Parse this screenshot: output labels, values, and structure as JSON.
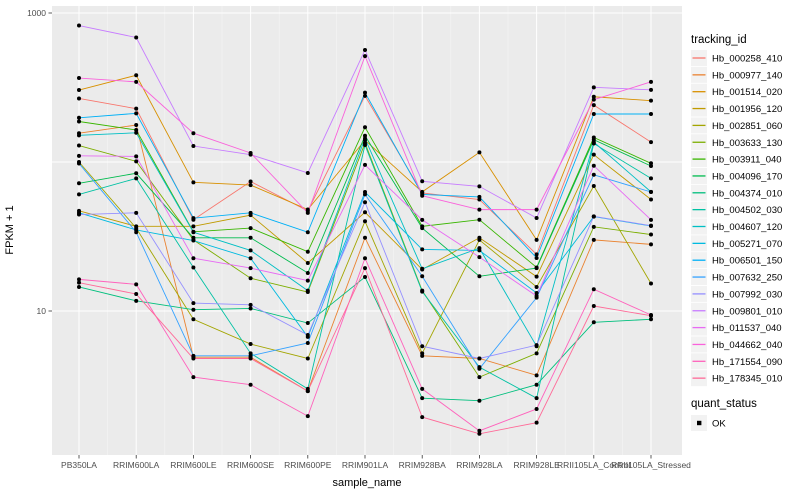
{
  "chart_data": {
    "type": "line",
    "title": "",
    "xlabel": "sample_name",
    "ylabel": "FPKM + 1",
    "y_scale": "log10",
    "ylim": [
      1,
      1100
    ],
    "y_ticks": [
      {
        "value": 1000,
        "label": "1000"
      },
      {
        "value": 10,
        "label": "10"
      }
    ],
    "y_gridlines": [
      10,
      100,
      1000
    ],
    "grid": "on",
    "legend_position": "right",
    "categories": [
      "PB350LA",
      "RRIM600LA",
      "RRIM600LE",
      "RRIM600SE",
      "RRIM600PE",
      "RRIM901LA",
      "RRIM928BA",
      "RRIM928LA",
      "RRIM928LE",
      "RRII105LA_Control",
      "RRII105LA_Stressed"
    ],
    "legend_title": "tracking_id",
    "series": [
      {
        "name": "Hb_000258_410",
        "color": "#F8766D",
        "values": [
          267,
          228,
          41,
          74,
          47,
          278,
          62,
          56,
          24,
          241,
          136
        ]
      },
      {
        "name": "Hb_000977_140",
        "color": "#EA8331",
        "values": [
          156,
          177,
          4.9,
          4.9,
          2.9,
          31,
          5.0,
          4.8,
          3.7,
          30,
          28
        ]
      },
      {
        "name": "Hb_001514_020",
        "color": "#D89000",
        "values": [
          304,
          382,
          73,
          70,
          48,
          140,
          63,
          116,
          30,
          274,
          258
        ]
      },
      {
        "name": "Hb_001956_120",
        "color": "#C09B00",
        "values": [
          47,
          37,
          37,
          44,
          21,
          46,
          19,
          31,
          17,
          112,
          56
        ]
      },
      {
        "name": "Hb_002851_060",
        "color": "#A3A500",
        "values": [
          100,
          36,
          8.8,
          6.0,
          4.8,
          40,
          5.2,
          30,
          14.5,
          69,
          15.3
        ]
      },
      {
        "name": "Hb_003633_130",
        "color": "#7CAE00",
        "values": [
          129,
          101,
          30,
          16.6,
          13.4,
          134,
          13.7,
          3.6,
          5.2,
          36.7,
          32.6
        ]
      },
      {
        "name": "Hb_003911_040",
        "color": "#39B600",
        "values": [
          187,
          164,
          34,
          36,
          25,
          171,
          37,
          41,
          19.6,
          146,
          98
        ]
      },
      {
        "name": "Hb_004096_170",
        "color": "#00BB4E",
        "values": [
          72,
          84,
          31,
          31,
          18,
          150,
          36,
          17.1,
          19.4,
          141,
          94
        ]
      },
      {
        "name": "Hb_004374_010",
        "color": "#00BF7D",
        "values": [
          14.5,
          11.7,
          10.2,
          10.4,
          8.3,
          16.9,
          2.6,
          2.5,
          3.2,
          8.4,
          8.8
        ]
      },
      {
        "name": "Hb_004502_030",
        "color": "#00C1A3",
        "values": [
          60.6,
          77.6,
          19.6,
          5.2,
          3.0,
          130,
          13.5,
          4.2,
          2.6,
          133,
          77.6
        ]
      },
      {
        "name": "Hb_004607_120",
        "color": "#00BFC4",
        "values": [
          151,
          157,
          33.8,
          25.5,
          13.7,
          144,
          19.2,
          26.4,
          5.8,
          136,
          63
        ]
      },
      {
        "name": "Hb_005271_070",
        "color": "#00BAE0",
        "values": [
          45.6,
          35,
          29.7,
          22.6,
          6.7,
          62.9,
          25.9,
          25.5,
          13.2,
          43,
          37.2
        ]
      },
      {
        "name": "Hb_006501_150",
        "color": "#00B0F6",
        "values": [
          198,
          212,
          42,
          45.6,
          33.8,
          292,
          60.6,
          58.3,
          22.7,
          210,
          210
        ]
      },
      {
        "name": "Hb_007632_250",
        "color": "#35A2FF",
        "values": [
          97.8,
          33.8,
          5.0,
          5.0,
          6.1,
          60.6,
          17.1,
          4.1,
          12.3,
          82.1,
          62.9
        ]
      },
      {
        "name": "Hb_007992_030",
        "color": "#9590FF",
        "values": [
          44.4,
          45.6,
          11.3,
          11.0,
          6.9,
          53.7,
          5.8,
          4.8,
          5.9,
          43.2,
          37.4
        ]
      },
      {
        "name": "Hb_009801_010",
        "color": "#C77CFF",
        "values": [
          824,
          685,
          128,
          112,
          84.4,
          565,
          74.2,
          68.6,
          42.1,
          317,
          305
        ]
      },
      {
        "name": "Hb_011537_040",
        "color": "#E76BF3",
        "values": [
          110,
          109,
          22.6,
          19.4,
          16,
          95.6,
          40.9,
          23,
          12.6,
          94.4,
          40.9
        ]
      },
      {
        "name": "Hb_044662_040",
        "color": "#FA62DB",
        "values": [
          366,
          345,
          156,
          115,
          45.6,
          514,
          59.4,
          47.9,
          47.9,
          262,
          345
        ]
      },
      {
        "name": "Hb_171554_090",
        "color": "#FF62BC",
        "values": [
          16.3,
          15.1,
          3.6,
          3.2,
          1.97,
          22.6,
          3.0,
          1.57,
          2.2,
          14,
          9.4
        ]
      },
      {
        "name": "Hb_178345_010",
        "color": "#FF6A98",
        "values": [
          15.5,
          13,
          4.8,
          4.8,
          2.9,
          19.4,
          1.94,
          1.5,
          1.78,
          10.8,
          9.3
        ]
      }
    ],
    "quant_status": {
      "title": "quant_status",
      "items": [
        {
          "label": "OK",
          "shape": "square",
          "color": "#000000"
        }
      ]
    },
    "colors": {
      "panel_bg": "#EBEBEB",
      "grid_major": "#FFFFFF",
      "grid_minor": "#FFFFFF",
      "key_bg": "#F2F2F2",
      "tick_label": "#4D4D4D",
      "axis_title": "#000000",
      "point": "#000000",
      "tick_mark": "#333333"
    }
  }
}
